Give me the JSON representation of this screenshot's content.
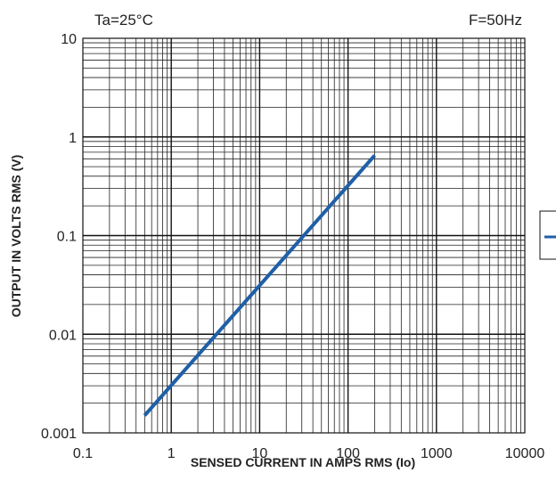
{
  "chart_data": {
    "type": "line",
    "x_scale": "log",
    "y_scale": "log",
    "xlim": [
      0.1,
      10000
    ],
    "ylim": [
      0.001,
      10
    ],
    "x_ticks": [
      "0.1",
      "1",
      "10",
      "100",
      "1000",
      "10000"
    ],
    "y_ticks": [
      "0.001",
      "0.01",
      "0.1",
      "1",
      "10"
    ],
    "xlabel": "SENSED CURRENT IN AMPS RMS (Io)",
    "ylabel": "OUTPUT  IN  VOLTS RMS (V)",
    "annotations": {
      "top_left": "Ta=25°C",
      "top_right": "F=50Hz"
    },
    "grid": true,
    "legend": "right (partially cropped)",
    "series": [
      {
        "color": "#1f5fa8",
        "x": [
          0.5,
          200
        ],
        "y": [
          0.0015,
          0.65
        ]
      }
    ]
  }
}
